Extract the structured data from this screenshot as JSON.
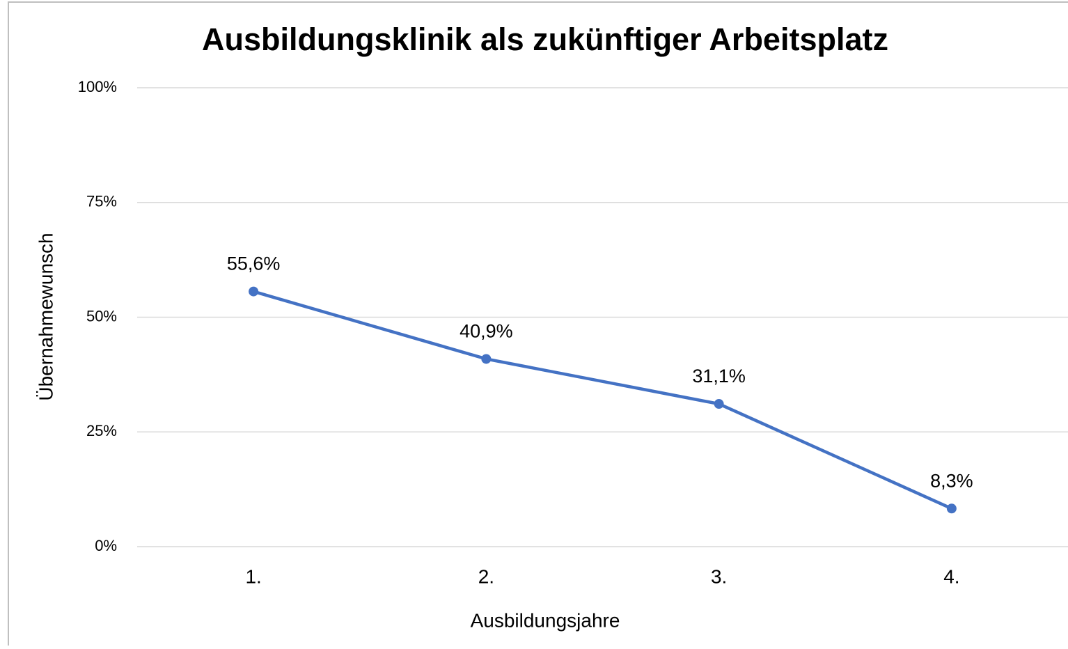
{
  "chart_data": {
    "type": "line",
    "title": "Ausbildungsklinik als zukünftiger Arbeitsplatz",
    "x_label": "Ausbildungsjahre",
    "y_label": "Übernahmewunsch",
    "categories": [
      "1.",
      "2.",
      "3.",
      "4."
    ],
    "series": [
      {
        "name": "Übernahmewunsch",
        "color": "#4472c4",
        "values": [
          55.6,
          40.9,
          31.1,
          8.3
        ],
        "value_labels": [
          "55,6%",
          "40,9%",
          "31,1%",
          "8,3%"
        ]
      }
    ],
    "ylim": [
      0,
      100
    ],
    "yticks": [
      {
        "value": 0,
        "label": "0%"
      },
      {
        "value": 25,
        "label": "25%"
      },
      {
        "value": 50,
        "label": "50%"
      },
      {
        "value": 75,
        "label": "75%"
      },
      {
        "value": 100,
        "label": "100%"
      }
    ],
    "grid": true
  }
}
